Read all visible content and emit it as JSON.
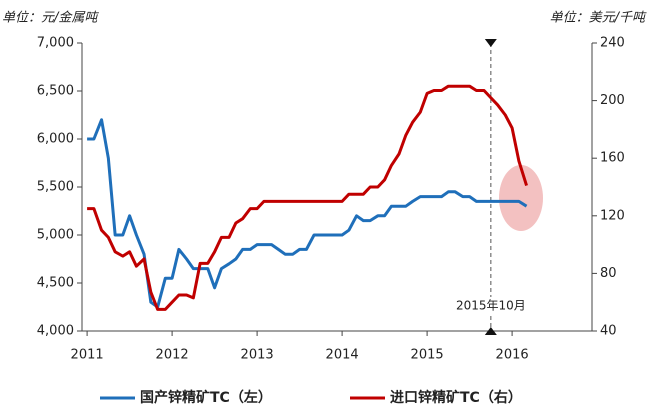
{
  "chart_data": {
    "type": "line",
    "left_unit": "单位：元/金属吨",
    "right_unit": "单位：美元/千吨",
    "x": [
      2011,
      2011.08,
      2011.17,
      2011.25,
      2011.33,
      2011.42,
      2011.5,
      2011.58,
      2011.67,
      2011.75,
      2011.83,
      2011.92,
      2012,
      2012.08,
      2012.17,
      2012.25,
      2012.33,
      2012.42,
      2012.5,
      2012.58,
      2012.67,
      2012.75,
      2012.83,
      2012.92,
      2013,
      2013.08,
      2013.17,
      2013.25,
      2013.33,
      2013.42,
      2013.5,
      2013.58,
      2013.67,
      2013.75,
      2013.83,
      2013.92,
      2014,
      2014.08,
      2014.17,
      2014.25,
      2014.33,
      2014.42,
      2014.5,
      2014.58,
      2014.67,
      2014.75,
      2014.83,
      2014.92,
      2015,
      2015.08,
      2015.17,
      2015.25,
      2015.33,
      2015.42,
      2015.5,
      2015.58,
      2015.67,
      2015.75,
      2015.83,
      2015.92,
      2016,
      2016.08,
      2016.17
    ],
    "series": [
      {
        "name": "国产锌精矿TC（左）",
        "color": "#1f6fba",
        "values": [
          6000,
          6000,
          6200,
          5800,
          5000,
          5000,
          5200,
          5000,
          4800,
          4300,
          4250,
          4550,
          4550,
          4850,
          4750,
          4650,
          4650,
          4650,
          4450,
          4650,
          4700,
          4750,
          4850,
          4850,
          4900,
          4900,
          4900,
          4850,
          4800,
          4800,
          4850,
          4850,
          5000,
          5000,
          5000,
          5000,
          5000,
          5050,
          5200,
          5150,
          5150,
          5200,
          5200,
          5300,
          5300,
          5300,
          5350,
          5400,
          5400,
          5400,
          5400,
          5450,
          5450,
          5400,
          5400,
          5350,
          5350,
          5350,
          5350,
          5350,
          5350,
          5350,
          5300
        ]
      },
      {
        "name": "进口锌精矿TC（右）",
        "color": "#c00000",
        "axis": "y2",
        "values": [
          125,
          125,
          110,
          105,
          95,
          92,
          95,
          85,
          90,
          67,
          55,
          55,
          60,
          65,
          65,
          63,
          87,
          87,
          95,
          105,
          105,
          115,
          118,
          125,
          125,
          130,
          130,
          130,
          130,
          130,
          130,
          130,
          130,
          130,
          130,
          130,
          130,
          135,
          135,
          135,
          140,
          140,
          145,
          155,
          163,
          176,
          185,
          192,
          205,
          207,
          207,
          210,
          210,
          210,
          210,
          207,
          207,
          202,
          197,
          190,
          181,
          158,
          141
        ]
      }
    ],
    "xlim": [
      2010.94,
      2016.94
    ],
    "xticks": [
      2011,
      2012,
      2013,
      2014,
      2015,
      2016
    ],
    "ylim": [
      4000,
      7000
    ],
    "yticks": [
      {
        "value": 4000,
        "label": "4,000"
      },
      {
        "value": 4500,
        "label": "4,500"
      },
      {
        "value": 5000,
        "label": "5,000"
      },
      {
        "value": 5500,
        "label": "5,500"
      },
      {
        "value": 6000,
        "label": "6,000"
      },
      {
        "value": 6500,
        "label": "6,500"
      },
      {
        "value": 7000,
        "label": "7,000"
      }
    ],
    "y2lim": [
      40,
      240
    ],
    "y2ticks": [
      40,
      80,
      120,
      160,
      200,
      240
    ],
    "annotation": {
      "text": "2015年10月",
      "x": 2015.75
    },
    "legend": "bottom"
  }
}
